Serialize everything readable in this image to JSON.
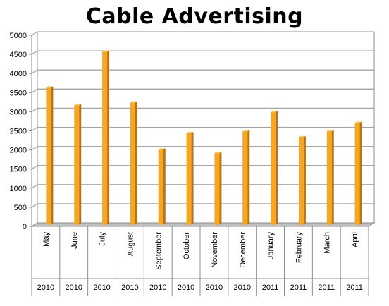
{
  "chart_data": {
    "type": "bar",
    "title": "Cable Advertising",
    "categories": [
      "May",
      "June",
      "July",
      "August",
      "September",
      "October",
      "November",
      "December",
      "January",
      "February",
      "March",
      "April"
    ],
    "years": [
      "2010",
      "2010",
      "2010",
      "2010",
      "2010",
      "2010",
      "2010",
      "2010",
      "2011",
      "2011",
      "2011",
      "2011"
    ],
    "series": [
      {
        "values": [
          3580,
          3120,
          4520,
          3190,
          1960,
          2390,
          1870,
          2440,
          2940,
          2280,
          2440,
          2660
        ]
      }
    ],
    "ylim": [
      0,
      5000
    ],
    "yticks": [
      0,
      500,
      1000,
      1500,
      2000,
      2500,
      3000,
      3500,
      4000,
      4500,
      5000
    ],
    "grid": true,
    "legend": "none",
    "bar_color": "#F5A623",
    "bar_side_color": "#B8740E",
    "bar_top_color": "#F9C25A",
    "wall_color": "#FFFFFF",
    "floor_color": "#BFBFBF",
    "grid_color": "#A6A6A6"
  }
}
